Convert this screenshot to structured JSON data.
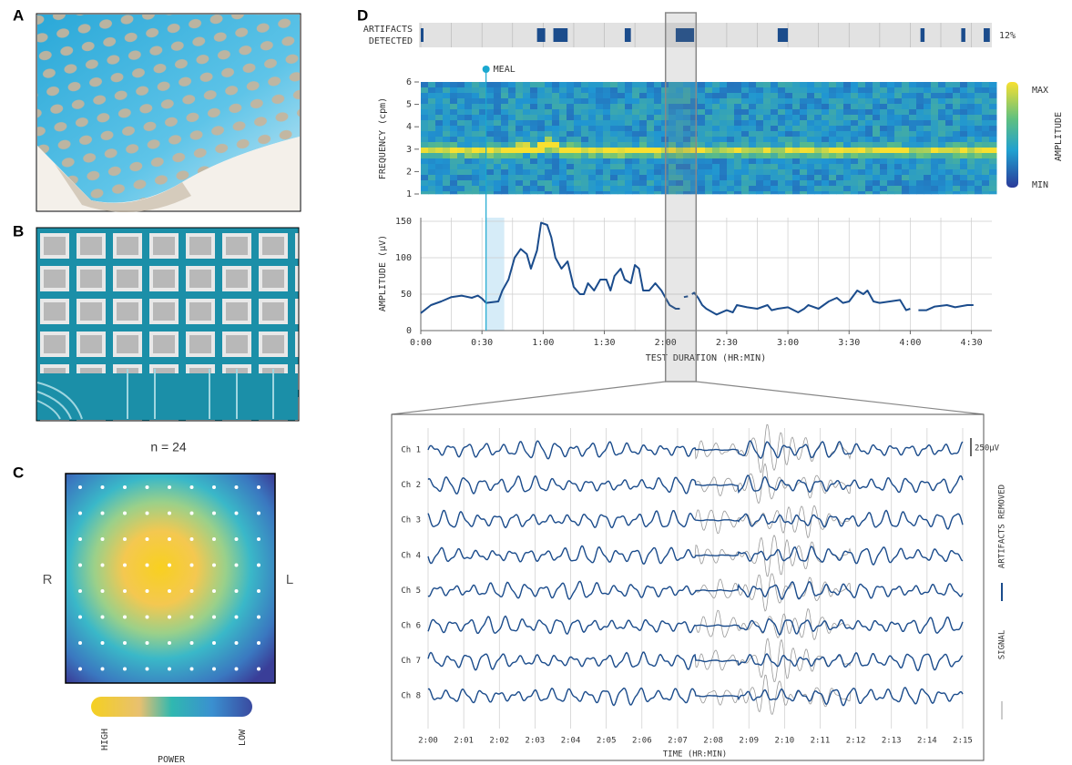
{
  "panel_labels": [
    "A",
    "B",
    "C",
    "D"
  ],
  "heatmap": {
    "title": "n = 24",
    "left_label": "R",
    "right_label": "L",
    "colorbar_high": "HIGH",
    "colorbar_low": "LOW",
    "colorbar_title": "POWER"
  },
  "chart_data": [
    {
      "type": "artifact-strip",
      "label_lines": [
        "ARTIFACTS",
        "DETECTED"
      ],
      "percent_label": "12%",
      "color": "#1b4c8c",
      "intervals": [
        [
          0,
          1
        ],
        [
          57,
          61
        ],
        [
          65,
          72
        ],
        [
          100,
          103
        ],
        [
          125,
          134
        ],
        [
          175,
          180
        ],
        [
          245,
          247
        ],
        [
          265,
          267
        ],
        [
          276,
          279
        ]
      ]
    },
    {
      "type": "spectrogram",
      "ylabel": "FREQUENCY (cpm)",
      "ylim": [
        1,
        6
      ],
      "yticks": [
        1,
        2,
        3,
        4,
        5,
        6
      ],
      "colorbar_max": "MAX",
      "colorbar_min": "MIN",
      "colorbar_title": "AMPLITUDE"
    },
    {
      "type": "line",
      "ylabel": "AMPLITUDE (μV)",
      "xlabel": "TEST DURATION (HR:MIN)",
      "annotation": "MEAL",
      "annotation_x": 32,
      "xlim": [
        0,
        280
      ],
      "ylim": [
        0,
        155
      ],
      "yticks": [
        0,
        50,
        100,
        150
      ],
      "xticks": [
        {
          "value": 0,
          "label": "0:00"
        },
        {
          "value": 30,
          "label": "0:30"
        },
        {
          "value": 60,
          "label": "1:00"
        },
        {
          "value": 90,
          "label": "1:30"
        },
        {
          "value": 120,
          "label": "2:00"
        },
        {
          "value": 150,
          "label": "2:30"
        },
        {
          "value": 180,
          "label": "3:00"
        },
        {
          "value": 210,
          "label": "3:30"
        },
        {
          "value": 240,
          "label": "4:00"
        },
        {
          "value": 270,
          "label": "4:30"
        }
      ],
      "series": [
        {
          "color": "#1b4c8c",
          "x": [
            0,
            5,
            10,
            15,
            20,
            25,
            28,
            30,
            32,
            38,
            40,
            43,
            46,
            49,
            52,
            54,
            57,
            59,
            62,
            64,
            66,
            69,
            72,
            75,
            78,
            80,
            82,
            85,
            88,
            91,
            93,
            95,
            98,
            100,
            103,
            105,
            107,
            109,
            112,
            115,
            118,
            120,
            122,
            125,
            127,
            128,
            129,
            131,
            132,
            133,
            134,
            136,
            138,
            140,
            145,
            150,
            153,
            155,
            160,
            165,
            170,
            172,
            175,
            180,
            185,
            188,
            190,
            195,
            200,
            204,
            207,
            210,
            214,
            217,
            219,
            222,
            225,
            230,
            235,
            238,
            240,
            242,
            244,
            248,
            252,
            258,
            262,
            268,
            271
          ],
          "values": [
            24,
            35,
            40,
            46,
            48,
            45,
            48,
            44,
            38,
            40,
            55,
            70,
            100,
            112,
            105,
            85,
            110,
            148,
            145,
            128,
            100,
            85,
            95,
            60,
            50,
            50,
            65,
            55,
            70,
            70,
            55,
            75,
            85,
            70,
            65,
            90,
            85,
            55,
            55,
            65,
            55,
            45,
            35,
            30,
            30,
            null,
            46,
            47,
            null,
            50,
            52,
            45,
            35,
            30,
            22,
            28,
            25,
            35,
            32,
            30,
            35,
            28,
            30,
            32,
            25,
            30,
            35,
            30,
            40,
            45,
            38,
            40,
            55,
            50,
            55,
            40,
            38,
            40,
            42,
            28,
            30,
            null,
            28,
            28,
            33,
            35,
            32,
            35,
            35
          ]
        }
      ]
    },
    {
      "type": "traces",
      "channels": [
        "Ch 1",
        "Ch 2",
        "Ch 3",
        "Ch 4",
        "Ch 5",
        "Ch 6",
        "Ch 7",
        "Ch 8"
      ],
      "xlim": [
        120,
        135
      ],
      "xlabel": "TIME (HR:MIN)",
      "scale_label": "250μV",
      "xticks": [
        {
          "value": 120,
          "label": "2:00"
        },
        {
          "value": 121,
          "label": "2:01"
        },
        {
          "value": 122,
          "label": "2:02"
        },
        {
          "value": 123,
          "label": "2:03"
        },
        {
          "value": 124,
          "label": "2:04"
        },
        {
          "value": 125,
          "label": "2:05"
        },
        {
          "value": 126,
          "label": "2:06"
        },
        {
          "value": 127,
          "label": "2:07"
        },
        {
          "value": 128,
          "label": "2:08"
        },
        {
          "value": 129,
          "label": "2:09"
        },
        {
          "value": 130,
          "label": "2:10"
        },
        {
          "value": 131,
          "label": "2:11"
        },
        {
          "value": 132,
          "label": "2:12"
        },
        {
          "value": 133,
          "label": "2:13"
        },
        {
          "value": 134,
          "label": "2:14"
        },
        {
          "value": 135,
          "label": "2:15"
        }
      ],
      "series": [
        {
          "name": "ARTIFACTS REMOVED",
          "color": "#1b4c8c"
        },
        {
          "name": "SIGNAL",
          "color": "#999999"
        }
      ]
    }
  ]
}
